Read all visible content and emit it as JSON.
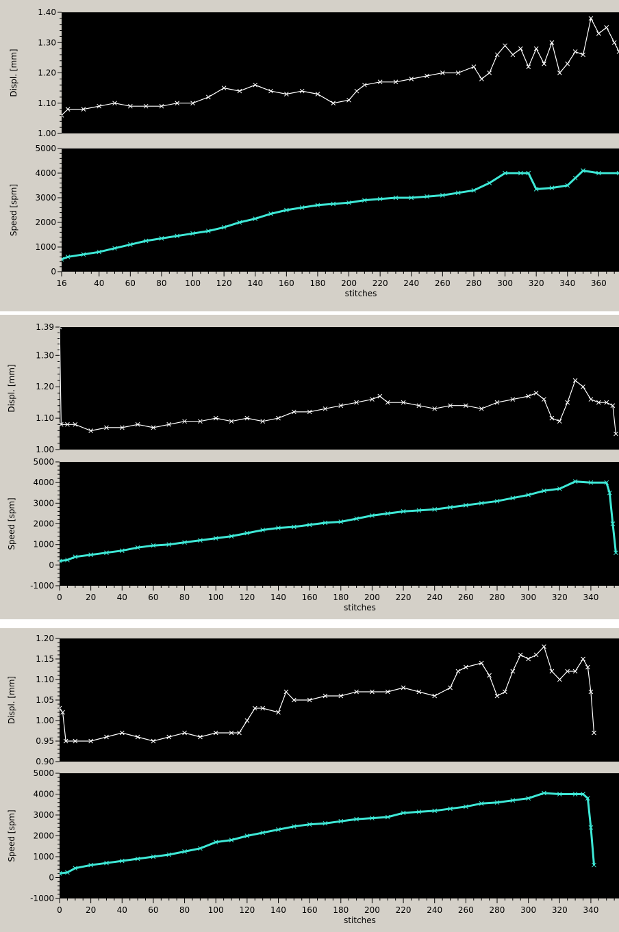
{
  "colors": {
    "panel_bg": "#d4d0c8",
    "plot_bg": "#000000",
    "displacement_series": "#ffffff",
    "speed_series": "#3ee8d6"
  },
  "icon_names": {
    "marker": "x-marker"
  },
  "chart_data": [
    {
      "type": "line",
      "panel": 1,
      "role": "displacement",
      "ylabel": "Displ. [mm]",
      "xlabel": "",
      "ylim": [
        1.0,
        1.4
      ],
      "xlim": [
        16,
        373
      ],
      "yticks": [
        1.0,
        1.1,
        1.2,
        1.3,
        1.4
      ],
      "ytick_labels": [
        "1.00",
        "1.10",
        "1.20",
        "1.30",
        "1.40"
      ],
      "xticks": [],
      "xtick_labels": [],
      "grid": false,
      "marker": "x",
      "series": [
        {
          "x": [
            16,
            20,
            30,
            40,
            50,
            60,
            70,
            80,
            90,
            100,
            110,
            120,
            130,
            140,
            150,
            160,
            170,
            180,
            190,
            200,
            205,
            210,
            220,
            230,
            240,
            250,
            260,
            270,
            280,
            285,
            290,
            295,
            300,
            305,
            310,
            315,
            320,
            325,
            330,
            335,
            340,
            345,
            350,
            355,
            360,
            365,
            370,
            373
          ],
          "y": [
            1.06,
            1.08,
            1.08,
            1.09,
            1.1,
            1.09,
            1.09,
            1.09,
            1.1,
            1.1,
            1.12,
            1.15,
            1.14,
            1.16,
            1.14,
            1.13,
            1.14,
            1.13,
            1.1,
            1.11,
            1.14,
            1.16,
            1.17,
            1.17,
            1.18,
            1.19,
            1.2,
            1.2,
            1.22,
            1.18,
            1.2,
            1.26,
            1.29,
            1.26,
            1.28,
            1.22,
            1.28,
            1.23,
            1.3,
            1.2,
            1.23,
            1.27,
            1.26,
            1.38,
            1.33,
            1.35,
            1.3,
            1.27
          ]
        }
      ]
    },
    {
      "type": "line",
      "panel": 1,
      "role": "speed",
      "ylabel": "Speed [spm]",
      "xlabel": "stitches",
      "ylim": [
        0,
        5000
      ],
      "xlim": [
        16,
        373
      ],
      "yticks": [
        0,
        1000,
        2000,
        3000,
        4000,
        5000
      ],
      "ytick_labels": [
        "0",
        "1000",
        "2000",
        "3000",
        "4000",
        "5000"
      ],
      "xticks": [
        16,
        40,
        60,
        80,
        100,
        120,
        140,
        160,
        180,
        200,
        220,
        240,
        260,
        280,
        300,
        320,
        340,
        360
      ],
      "xtick_labels": [
        "16",
        "40",
        "60",
        "80",
        "100",
        "120",
        "140",
        "160",
        "180",
        "200",
        "220",
        "240",
        "260",
        "280",
        "300",
        "320",
        "340",
        "360"
      ],
      "grid": false,
      "marker": "x",
      "series": [
        {
          "x": [
            16,
            20,
            30,
            40,
            50,
            60,
            70,
            80,
            90,
            100,
            110,
            120,
            130,
            140,
            150,
            160,
            170,
            180,
            190,
            200,
            210,
            220,
            230,
            240,
            250,
            260,
            270,
            280,
            290,
            300,
            310,
            315,
            320,
            330,
            340,
            345,
            350,
            360,
            373
          ],
          "y": [
            500,
            600,
            700,
            800,
            950,
            1100,
            1250,
            1350,
            1450,
            1550,
            1650,
            1800,
            2000,
            2150,
            2350,
            2500,
            2600,
            2700,
            2750,
            2800,
            2900,
            2950,
            3000,
            3000,
            3050,
            3100,
            3200,
            3300,
            3600,
            4000,
            4000,
            4000,
            3350,
            3400,
            3500,
            3800,
            4100,
            4000,
            4000
          ]
        }
      ]
    },
    {
      "type": "line",
      "panel": 2,
      "role": "displacement",
      "ylabel": "Displ. [mm]",
      "xlabel": "",
      "ylim": [
        1.0,
        1.39
      ],
      "xlim": [
        0,
        358
      ],
      "yticks": [
        1.0,
        1.1,
        1.2,
        1.3,
        1.39
      ],
      "ytick_labels": [
        "1.00",
        "1.10",
        "1.20",
        "1.30",
        "1.39"
      ],
      "xticks": [],
      "xtick_labels": [],
      "grid": false,
      "marker": "x",
      "series": [
        {
          "x": [
            0,
            1,
            5,
            10,
            20,
            30,
            40,
            50,
            60,
            70,
            80,
            90,
            100,
            110,
            120,
            130,
            140,
            150,
            160,
            170,
            180,
            190,
            200,
            205,
            210,
            220,
            230,
            240,
            250,
            260,
            270,
            280,
            290,
            300,
            305,
            310,
            315,
            320,
            325,
            330,
            335,
            340,
            345,
            350,
            354,
            356
          ],
          "y": [
            1.39,
            1.08,
            1.08,
            1.08,
            1.06,
            1.07,
            1.07,
            1.08,
            1.07,
            1.08,
            1.09,
            1.09,
            1.1,
            1.09,
            1.1,
            1.09,
            1.1,
            1.12,
            1.12,
            1.13,
            1.14,
            1.15,
            1.16,
            1.17,
            1.15,
            1.15,
            1.14,
            1.13,
            1.14,
            1.14,
            1.13,
            1.15,
            1.16,
            1.17,
            1.18,
            1.16,
            1.1,
            1.09,
            1.15,
            1.22,
            1.2,
            1.16,
            1.15,
            1.15,
            1.14,
            1.05
          ]
        }
      ]
    },
    {
      "type": "line",
      "panel": 2,
      "role": "speed",
      "ylabel": "Speed [spm]",
      "xlabel": "stitches",
      "ylim": [
        -1000,
        5000
      ],
      "xlim": [
        0,
        358
      ],
      "yticks": [
        -1000,
        0,
        1000,
        2000,
        3000,
        4000,
        5000
      ],
      "ytick_labels": [
        "-1000",
        "0",
        "1000",
        "2000",
        "3000",
        "4000",
        "5000"
      ],
      "xticks": [
        0,
        20,
        40,
        60,
        80,
        100,
        120,
        140,
        160,
        180,
        200,
        220,
        240,
        260,
        280,
        300,
        320,
        340
      ],
      "xtick_labels": [
        "0",
        "20",
        "40",
        "60",
        "80",
        "100",
        "120",
        "140",
        "160",
        "180",
        "200",
        "220",
        "240",
        "260",
        "280",
        "300",
        "320",
        "340"
      ],
      "grid": false,
      "marker": "x",
      "series": [
        {
          "x": [
            0,
            5,
            10,
            20,
            30,
            40,
            50,
            60,
            70,
            80,
            90,
            100,
            110,
            120,
            130,
            140,
            150,
            160,
            170,
            180,
            190,
            200,
            210,
            220,
            230,
            240,
            250,
            260,
            270,
            280,
            290,
            300,
            310,
            320,
            330,
            340,
            350,
            352,
            354,
            356
          ],
          "y": [
            200,
            250,
            400,
            500,
            600,
            700,
            850,
            950,
            1000,
            1100,
            1200,
            1300,
            1400,
            1550,
            1700,
            1800,
            1850,
            1950,
            2050,
            2100,
            2250,
            2400,
            2500,
            2600,
            2650,
            2700,
            2800,
            2900,
            3000,
            3100,
            3250,
            3400,
            3600,
            3700,
            4050,
            4000,
            4000,
            3500,
            2000,
            600
          ]
        }
      ]
    },
    {
      "type": "line",
      "panel": 3,
      "role": "displacement",
      "ylabel": "Displ. [mm]",
      "xlabel": "",
      "ylim": [
        0.9,
        1.2
      ],
      "xlim": [
        0,
        358
      ],
      "yticks": [
        0.9,
        0.95,
        1.0,
        1.05,
        1.1,
        1.15,
        1.2
      ],
      "ytick_labels": [
        "0.90",
        "0.95",
        "1.00",
        "1.05",
        "1.10",
        "1.15",
        "1.20"
      ],
      "xticks": [],
      "xtick_labels": [],
      "grid": false,
      "marker": "x",
      "series": [
        {
          "x": [
            0,
            2,
            4,
            10,
            20,
            30,
            40,
            50,
            60,
            70,
            80,
            90,
            100,
            110,
            115,
            120,
            125,
            130,
            140,
            145,
            150,
            160,
            170,
            180,
            190,
            200,
            210,
            220,
            230,
            240,
            250,
            255,
            260,
            270,
            275,
            280,
            285,
            290,
            295,
            300,
            305,
            310,
            315,
            320,
            325,
            330,
            335,
            338,
            340,
            342
          ],
          "y": [
            1.03,
            1.02,
            0.95,
            0.95,
            0.95,
            0.96,
            0.97,
            0.96,
            0.95,
            0.96,
            0.97,
            0.96,
            0.97,
            0.97,
            0.97,
            1.0,
            1.03,
            1.03,
            1.02,
            1.07,
            1.05,
            1.05,
            1.06,
            1.06,
            1.07,
            1.07,
            1.07,
            1.08,
            1.07,
            1.06,
            1.08,
            1.12,
            1.13,
            1.14,
            1.11,
            1.06,
            1.07,
            1.12,
            1.16,
            1.15,
            1.16,
            1.18,
            1.12,
            1.1,
            1.12,
            1.12,
            1.15,
            1.13,
            1.07,
            0.97
          ]
        }
      ]
    },
    {
      "type": "line",
      "panel": 3,
      "role": "speed",
      "ylabel": "Speed [spm]",
      "xlabel": "stitches",
      "ylim": [
        -1000,
        5000
      ],
      "xlim": [
        0,
        358
      ],
      "yticks": [
        -1000,
        0,
        1000,
        2000,
        3000,
        4000,
        5000
      ],
      "ytick_labels": [
        "-1000",
        "0",
        "1000",
        "2000",
        "3000",
        "4000",
        "5000"
      ],
      "xticks": [
        0,
        20,
        40,
        60,
        80,
        100,
        120,
        140,
        160,
        180,
        200,
        220,
        240,
        260,
        280,
        300,
        320,
        340
      ],
      "xtick_labels": [
        "0",
        "20",
        "40",
        "60",
        "80",
        "100",
        "120",
        "140",
        "160",
        "180",
        "200",
        "220",
        "240",
        "260",
        "280",
        "300",
        "320",
        "340"
      ],
      "grid": false,
      "marker": "x",
      "series": [
        {
          "x": [
            0,
            5,
            10,
            20,
            30,
            40,
            50,
            60,
            70,
            80,
            90,
            100,
            110,
            120,
            130,
            140,
            150,
            160,
            170,
            180,
            190,
            200,
            210,
            220,
            230,
            240,
            250,
            260,
            270,
            280,
            290,
            300,
            310,
            320,
            330,
            335,
            338,
            340,
            342
          ],
          "y": [
            200,
            250,
            450,
            600,
            700,
            800,
            900,
            1000,
            1100,
            1250,
            1400,
            1700,
            1800,
            2000,
            2150,
            2300,
            2450,
            2550,
            2600,
            2700,
            2800,
            2850,
            2900,
            3100,
            3150,
            3200,
            3300,
            3400,
            3550,
            3600,
            3700,
            3800,
            4050,
            4000,
            4000,
            4000,
            3800,
            2400,
            600
          ]
        }
      ]
    }
  ]
}
